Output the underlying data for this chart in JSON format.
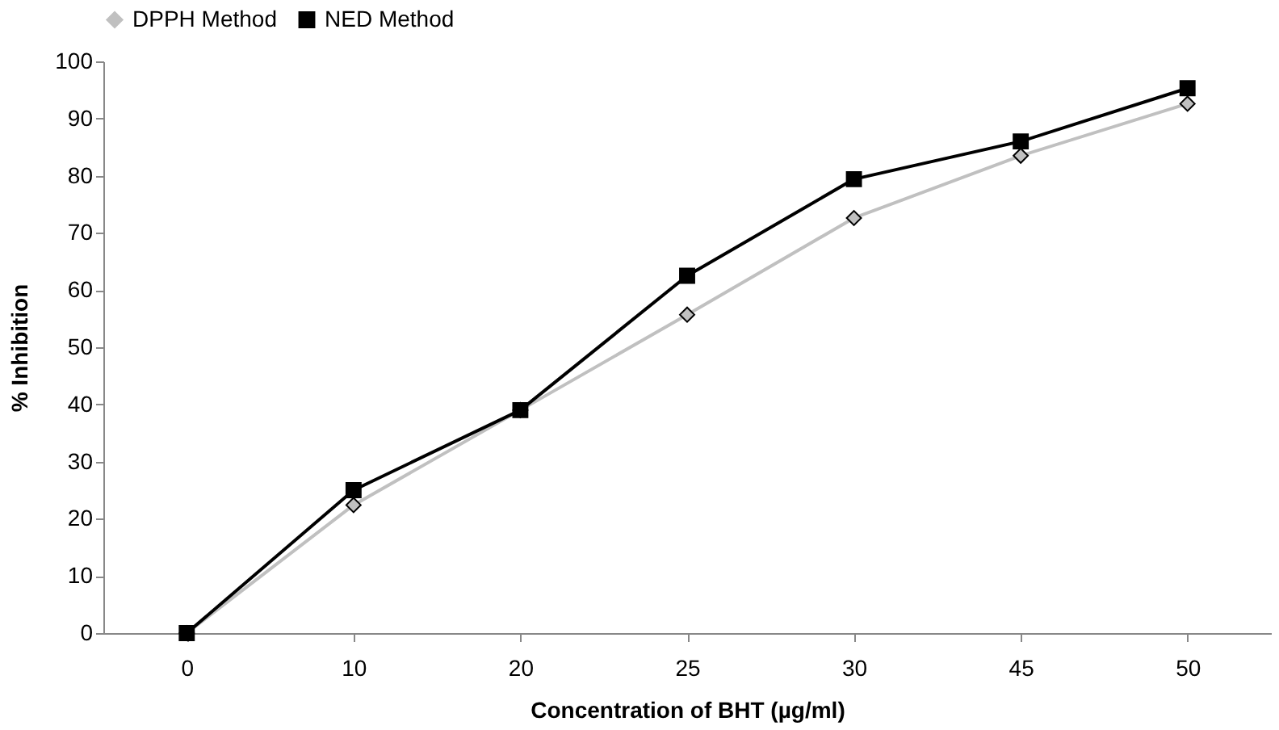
{
  "chart_data": {
    "type": "line",
    "xlabel": "Concentration of BHT (µg/ml)",
    "ylabel": "% Inhibition",
    "categories": [
      "0",
      "10",
      "20",
      "25",
      "30",
      "45",
      "50"
    ],
    "series": [
      {
        "name": "DPPH Method",
        "color": "#c0c0c0",
        "marker": "diamond",
        "values": [
          0,
          22.4,
          39,
          55.7,
          72.6,
          83.5,
          92.6
        ]
      },
      {
        "name": "NED Method",
        "color": "#000000",
        "marker": "square",
        "values": [
          0,
          25,
          39,
          62.5,
          79.4,
          86,
          95.3
        ]
      }
    ],
    "ylim": [
      0,
      100
    ],
    "yticks": [
      0,
      10,
      20,
      30,
      40,
      50,
      60,
      70,
      80,
      90,
      100
    ],
    "grid": false,
    "legend": "top",
    "line_style": "solid"
  }
}
